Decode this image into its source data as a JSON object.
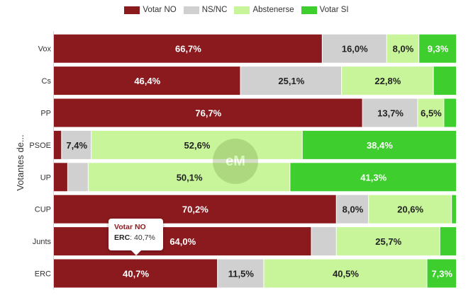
{
  "chart_data": {
    "type": "bar",
    "orientation": "horizontal",
    "stacked": "percent",
    "ylabel": "Votantes de...",
    "categories": [
      "Vox",
      "Cs",
      "PP",
      "PSOE",
      "UP",
      "CUP",
      "Junts",
      "ERC"
    ],
    "series": [
      {
        "name": "Votar NO",
        "color": "#8b1a1f",
        "values": [
          66.7,
          46.4,
          76.7,
          2.0,
          3.5,
          70.2,
          64.0,
          40.7
        ]
      },
      {
        "name": "NS/NC",
        "color": "#d0d0d0",
        "values": [
          16.0,
          25.1,
          13.7,
          7.4,
          5.1,
          8.0,
          6.2,
          11.5
        ]
      },
      {
        "name": "Abstenerse",
        "color": "#c8f59a",
        "values": [
          8.0,
          22.8,
          6.5,
          52.6,
          50.1,
          20.6,
          25.7,
          40.5
        ]
      },
      {
        "name": "Votar SI",
        "color": "#3ecf2e",
        "values": [
          9.3,
          5.7,
          3.1,
          38.4,
          41.3,
          1.2,
          4.1,
          7.3
        ]
      }
    ],
    "data_labels": [
      [
        "66,7%",
        "46,4%",
        "76,7%",
        "",
        "",
        "70,2%",
        "64,0%",
        "40,7%"
      ],
      [
        "16,0%",
        "25,1%",
        "13,7%",
        "7,4%",
        "",
        "8,0%",
        "",
        "11,5%"
      ],
      [
        "8,0%",
        "22,8%",
        "6,5%",
        "52,6%",
        "50,1%",
        "20,6%",
        "25,7%",
        "40,5%"
      ],
      [
        "9,3%",
        "",
        "",
        "38,4%",
        "41,3%",
        "",
        "",
        "7,3%"
      ]
    ],
    "xlim": [
      0,
      100
    ],
    "grid": false,
    "legend_position": "top-center",
    "tooltip": {
      "series": "Votar NO",
      "category": "ERC",
      "value": "40,7%"
    }
  },
  "watermark": {
    "text": "eM"
  }
}
